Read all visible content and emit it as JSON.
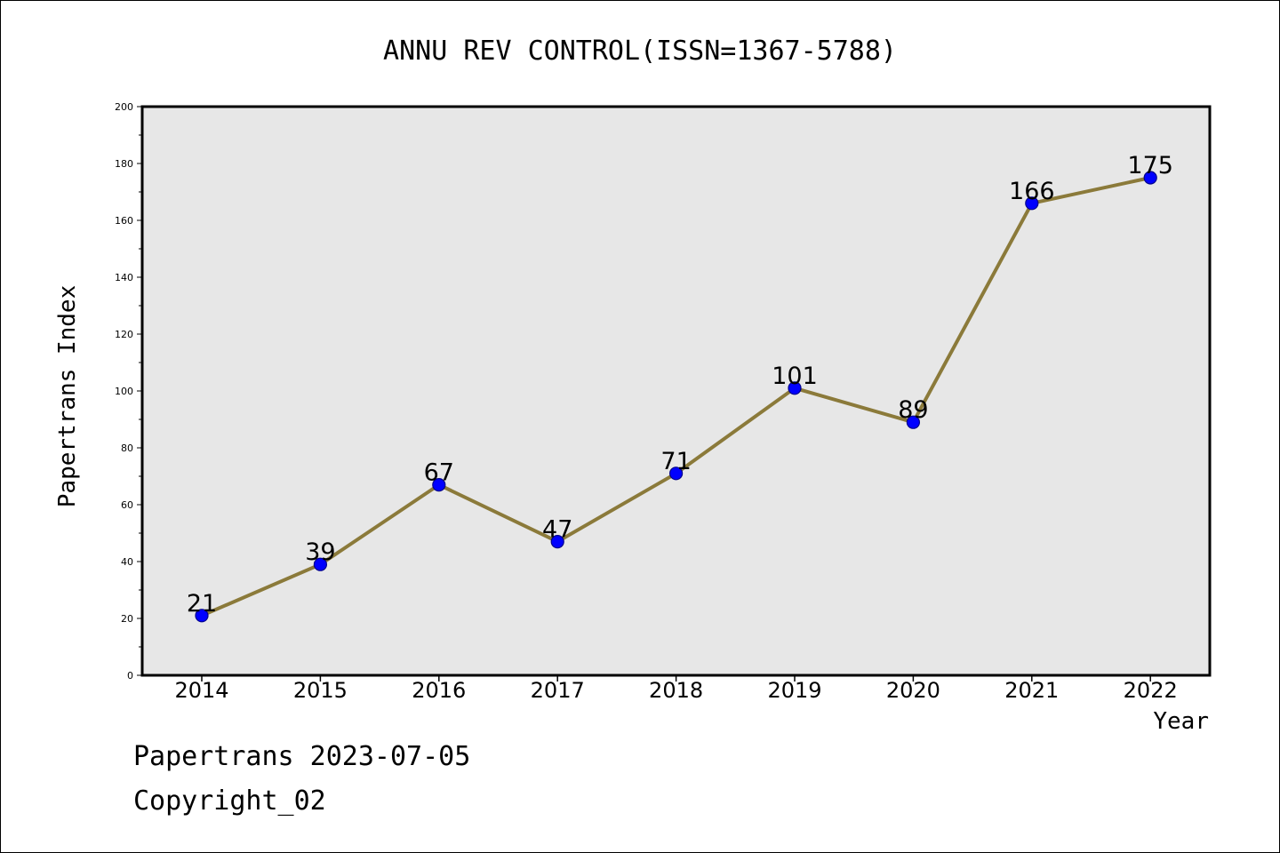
{
  "chart_data": {
    "type": "line",
    "title": "ANNU REV CONTROL(ISSN=1367-5788)",
    "xlabel": "Year",
    "ylabel": "Papertrans Index",
    "categories": [
      "2014",
      "2015",
      "2016",
      "2017",
      "2018",
      "2019",
      "2020",
      "2021",
      "2022"
    ],
    "series": [
      {
        "values": [
          21,
          39,
          67,
          47,
          71,
          101,
          89,
          166,
          175
        ]
      }
    ],
    "data_labels": [
      "21",
      "39",
      "67",
      "47",
      "71",
      "101",
      "89",
      "166",
      "175"
    ],
    "yticks": [
      "0",
      "20",
      "40",
      "60",
      "80",
      "100",
      "120",
      "140",
      "160",
      "180",
      "200"
    ],
    "ylim": [
      0,
      200
    ],
    "grid": false,
    "legend": "none",
    "colors": {
      "plot_background": "#e7e7e7",
      "line": "#8b7a3a",
      "marker_fill": "#0000ff",
      "marker_edge": "#00008b"
    }
  },
  "footer": {
    "line1": "Papertrans 2023-07-05",
    "line2": "Copyright_02"
  }
}
